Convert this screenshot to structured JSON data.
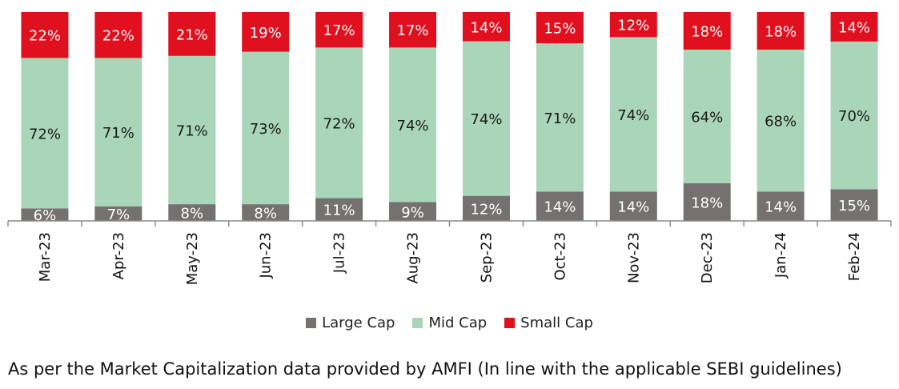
{
  "chart_data": {
    "type": "bar",
    "stacked": true,
    "percent": true,
    "categories": [
      "Mar-23",
      "Apr-23",
      "May-23",
      "Jun-23",
      "Jul-23",
      "Aug-23",
      "Sep-23",
      "Oct-23",
      "Nov-23",
      "Dec-23",
      "Jan-24",
      "Feb-24"
    ],
    "series": [
      {
        "name": "Large Cap",
        "color": "#767171",
        "label_color": "#ffffff",
        "values": [
          6,
          7,
          8,
          8,
          11,
          9,
          12,
          14,
          14,
          18,
          14,
          15
        ],
        "labels": [
          "6%",
          "7%",
          "8%",
          "8%",
          "11%",
          "9%",
          "12%",
          "14%",
          "14%",
          "18%",
          "14%",
          "15%"
        ]
      },
      {
        "name": "Mid Cap",
        "color": "#a9d5b8",
        "label_color": "#1a1a1a",
        "values": [
          72,
          71,
          71,
          73,
          72,
          74,
          74,
          71,
          74,
          64,
          68,
          70
        ],
        "labels": [
          "72%",
          "71%",
          "71%",
          "73%",
          "72%",
          "74%",
          "74%",
          "71%",
          "74%",
          "64%",
          "68%",
          "70%"
        ]
      },
      {
        "name": "Small Cap",
        "color": "#e0101e",
        "label_color": "#ffffff",
        "values": [
          22,
          22,
          21,
          19,
          17,
          17,
          14,
          15,
          12,
          18,
          18,
          14
        ],
        "labels": [
          "22%",
          "22%",
          "21%",
          "19%",
          "17%",
          "17%",
          "14%",
          "15%",
          "12%",
          "18%",
          "18%",
          "14%"
        ]
      }
    ],
    "legend_position": "bottom",
    "grid": false
  },
  "footnote": "As per the Market Capitalization data provided by AMFI (In line with the applicable SEBI guidelines)"
}
